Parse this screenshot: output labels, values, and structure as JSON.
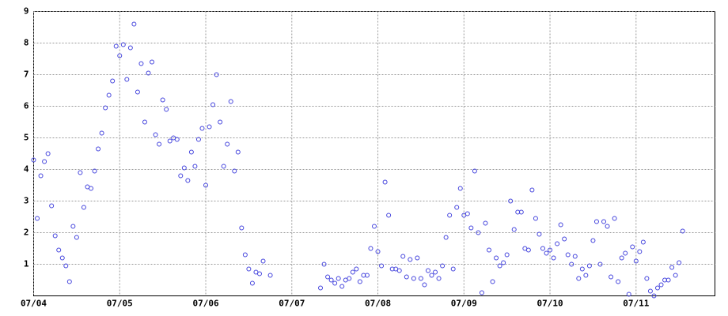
{
  "chart_data": {
    "type": "scatter",
    "color": "#4444dd",
    "grid": true,
    "xlim": [
      0,
      190
    ],
    "ylim": [
      0,
      9
    ],
    "xticks": [
      {
        "value": 0,
        "label": "07/04"
      },
      {
        "value": 24,
        "label": "07/05"
      },
      {
        "value": 48,
        "label": "07/06"
      },
      {
        "value": 72,
        "label": "07/07"
      },
      {
        "value": 96,
        "label": "07/08"
      },
      {
        "value": 120,
        "label": "07/09"
      },
      {
        "value": 144,
        "label": "07/10"
      },
      {
        "value": 168,
        "label": "07/11"
      }
    ],
    "yticks": [
      1,
      2,
      3,
      4,
      5,
      6,
      7,
      8,
      9
    ],
    "x": [
      0,
      1,
      2,
      3,
      4,
      5,
      6,
      7,
      8,
      9,
      10,
      11,
      12,
      13,
      14,
      15,
      16,
      17,
      18,
      19,
      20,
      21,
      22,
      23,
      24,
      25,
      26,
      27,
      28,
      29,
      30,
      31,
      32,
      33,
      34,
      35,
      36,
      37,
      38,
      39,
      40,
      41,
      42,
      43,
      44,
      45,
      46,
      47,
      48,
      49,
      50,
      51,
      52,
      53,
      54,
      55,
      56,
      57,
      58,
      59,
      60,
      61,
      62,
      63,
      64,
      66,
      80,
      81,
      82,
      83,
      84,
      85,
      86,
      87,
      88,
      89,
      90,
      91,
      92,
      93,
      94,
      95,
      96,
      97,
      98,
      99,
      100,
      101,
      102,
      103,
      104,
      105,
      106,
      107,
      108,
      109,
      110,
      111,
      112,
      113,
      114,
      115,
      116,
      117,
      118,
      119,
      120,
      121,
      122,
      123,
      124,
      125,
      126,
      127,
      128,
      129,
      130,
      131,
      132,
      133,
      134,
      135,
      136,
      137,
      138,
      139,
      140,
      141,
      142,
      143,
      144,
      145,
      146,
      147,
      148,
      149,
      150,
      151,
      152,
      153,
      154,
      155,
      156,
      157,
      158,
      159,
      160,
      161,
      162,
      163,
      164,
      165,
      166,
      167,
      168,
      169,
      170,
      171,
      172,
      173,
      174,
      175,
      176,
      177,
      178,
      179,
      180,
      181
    ],
    "values": [
      4.3,
      2.45,
      3.8,
      4.25,
      4.5,
      2.85,
      1.9,
      1.45,
      1.2,
      0.95,
      0.45,
      2.2,
      1.85,
      3.9,
      2.8,
      3.45,
      3.4,
      3.95,
      4.65,
      5.15,
      5.95,
      6.35,
      6.8,
      7.9,
      7.6,
      7.95,
      6.85,
      7.85,
      8.6,
      6.45,
      7.35,
      5.5,
      7.05,
      7.4,
      5.1,
      4.8,
      6.2,
      5.9,
      4.9,
      5.0,
      4.95,
      3.8,
      4.05,
      3.65,
      4.55,
      4.1,
      4.95,
      5.3,
      3.5,
      5.35,
      6.05,
      7.0,
      5.5,
      4.1,
      4.8,
      6.15,
      3.95,
      4.55,
      2.15,
      1.3,
      0.85,
      0.4,
      0.75,
      0.7,
      1.1,
      0.65,
      0.25,
      1.0,
      0.6,
      0.5,
      0.4,
      0.55,
      0.3,
      0.5,
      0.55,
      0.75,
      0.85,
      0.45,
      0.65,
      0.65,
      1.5,
      2.2,
      1.4,
      0.95,
      3.6,
      2.55,
      0.85,
      0.85,
      0.8,
      1.25,
      0.6,
      1.15,
      0.55,
      1.2,
      0.55,
      0.35,
      0.8,
      0.65,
      0.75,
      0.55,
      0.95,
      1.85,
      2.55,
      0.85,
      2.8,
      3.4,
      2.55,
      2.6,
      2.15,
      3.95,
      2.0,
      0.1,
      2.3,
      1.45,
      0.45,
      1.2,
      0.95,
      1.05,
      1.3,
      3.0,
      2.1,
      2.65,
      2.65,
      1.5,
      1.45,
      3.35,
      2.45,
      1.95,
      1.5,
      1.35,
      1.45,
      1.2,
      1.65,
      2.25,
      1.8,
      1.3,
      1.0,
      1.25,
      0.55,
      0.85,
      0.65,
      0.95,
      1.75,
      2.35,
      1.0,
      2.35,
      2.2,
      0.6,
      2.45,
      0.45,
      1.2,
      1.35,
      0.05,
      1.55,
      1.1,
      1.4,
      1.7,
      0.55,
      0.15,
      0.0,
      0.25,
      0.35,
      0.5,
      0.5,
      0.9,
      0.65,
      1.05,
      2.05
    ]
  }
}
